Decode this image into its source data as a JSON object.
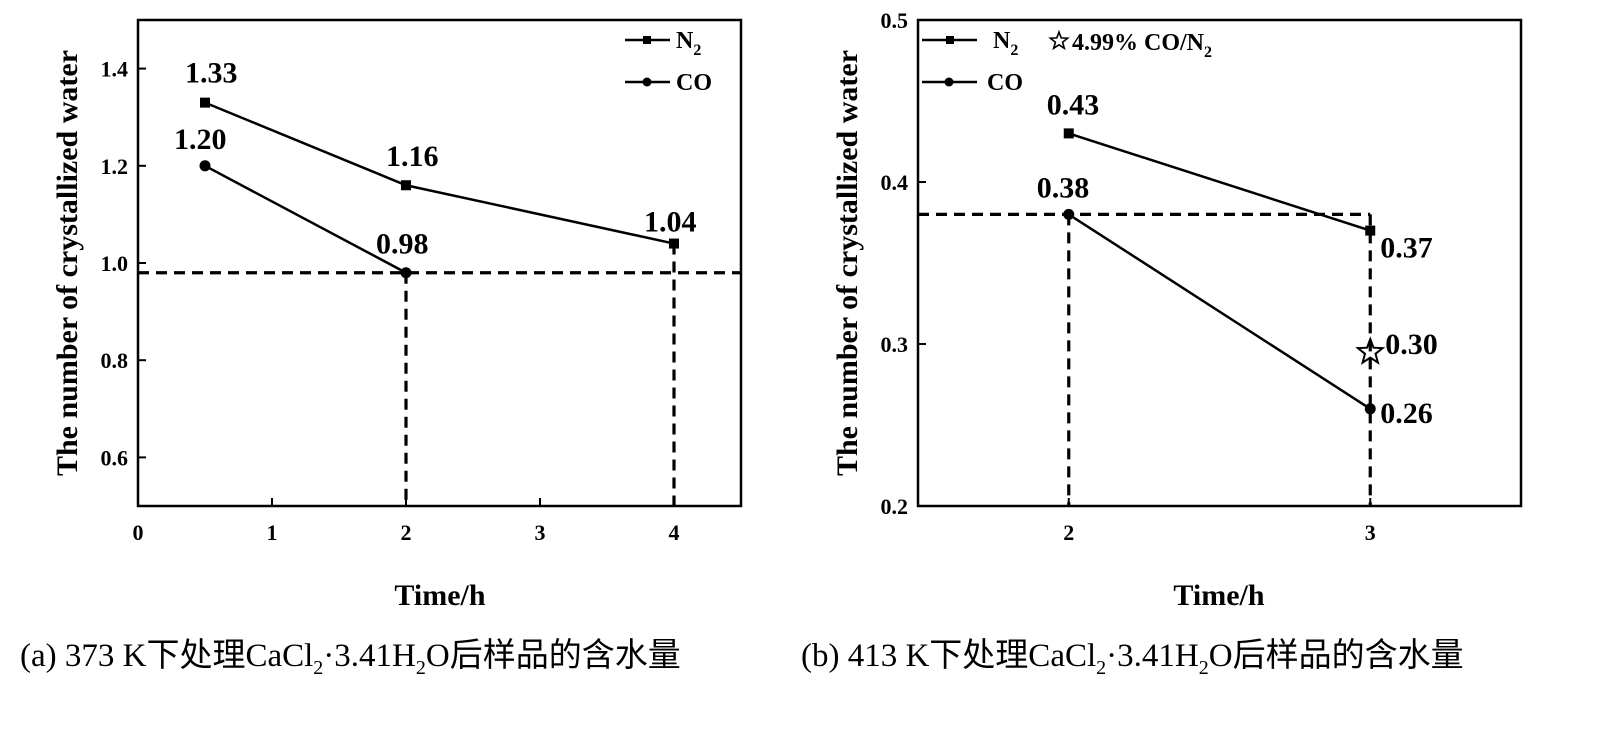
{
  "chart_data": [
    {
      "type": "line",
      "panel": "a",
      "xlabel": "Time/h",
      "ylabel": "The number of crystallized water",
      "xlim": [
        0,
        4.5
      ],
      "ylim": [
        0.5,
        1.5
      ],
      "xticks": [
        0,
        1,
        2,
        3,
        4
      ],
      "xtick_labels": [
        "0",
        "1",
        "2",
        "3",
        "4"
      ],
      "yticks": [
        0.6,
        0.8,
        1.0,
        1.2,
        1.4
      ],
      "ytick_labels": [
        "0.6",
        "0.8",
        "1.0",
        "1.2",
        "1.4"
      ],
      "series": [
        {
          "name": "N2",
          "marker": "square",
          "points": [
            {
              "x": 0.5,
              "y": 1.33,
              "label": "1.33"
            },
            {
              "x": 2,
              "y": 1.16,
              "label": "1.16"
            },
            {
              "x": 4,
              "y": 1.04,
              "label": "1.04"
            }
          ]
        },
        {
          "name": "CO",
          "marker": "circle",
          "points": [
            {
              "x": 0.5,
              "y": 1.2,
              "label": "1.20"
            },
            {
              "x": 2,
              "y": 0.98,
              "label": "0.98"
            }
          ]
        }
      ],
      "reference_lines": [
        {
          "orientation": "horizontal",
          "value": 0.98
        },
        {
          "orientation": "vertical",
          "value": 2
        },
        {
          "orientation": "vertical",
          "value": 4
        }
      ],
      "legend": {
        "position": "top-right",
        "entries": [
          "N",
          "CO"
        ],
        "n2_subscript": "2"
      },
      "caption_parts": [
        "(a)  373 K下处理CaCl",
        "2",
        "·3.41H",
        "2",
        "O后样品的含水量"
      ]
    },
    {
      "type": "line",
      "panel": "b",
      "xlabel": "Time/h",
      "ylabel": "The number of crystallized water",
      "xlim": [
        1.5,
        3.5
      ],
      "ylim": [
        0.2,
        0.5
      ],
      "xticks": [
        2,
        3
      ],
      "xtick_labels": [
        "2",
        "3"
      ],
      "yticks": [
        0.2,
        0.3,
        0.4,
        0.5
      ],
      "ytick_labels": [
        "0.2",
        "0.3",
        "0.4",
        "0.5"
      ],
      "series": [
        {
          "name": "N2",
          "marker": "square",
          "points": [
            {
              "x": 2,
              "y": 0.43,
              "label": "0.43"
            },
            {
              "x": 3,
              "y": 0.37,
              "label": "0.37"
            }
          ]
        },
        {
          "name": "CO",
          "marker": "circle",
          "points": [
            {
              "x": 2,
              "y": 0.38,
              "label": "0.38"
            },
            {
              "x": 3,
              "y": 0.26,
              "label": "0.26"
            }
          ]
        },
        {
          "name": "4.99% CO/N2",
          "marker": "star",
          "points": [
            {
              "x": 3,
              "y": 0.295,
              "label": "0.30"
            }
          ]
        }
      ],
      "reference_lines": [
        {
          "orientation": "horizontal",
          "value": 0.38
        },
        {
          "orientation": "vertical",
          "value": 2
        },
        {
          "orientation": "vertical",
          "value": 3
        }
      ],
      "legend": {
        "position": "top-left",
        "entries": [
          "N",
          "CO",
          "4.99% CO/N"
        ],
        "n2_subscript": "2"
      },
      "caption_parts": [
        "(b) 413 K下处理CaCl",
        "2",
        "·3.41H",
        "2",
        "O后样品的含水量"
      ]
    }
  ]
}
